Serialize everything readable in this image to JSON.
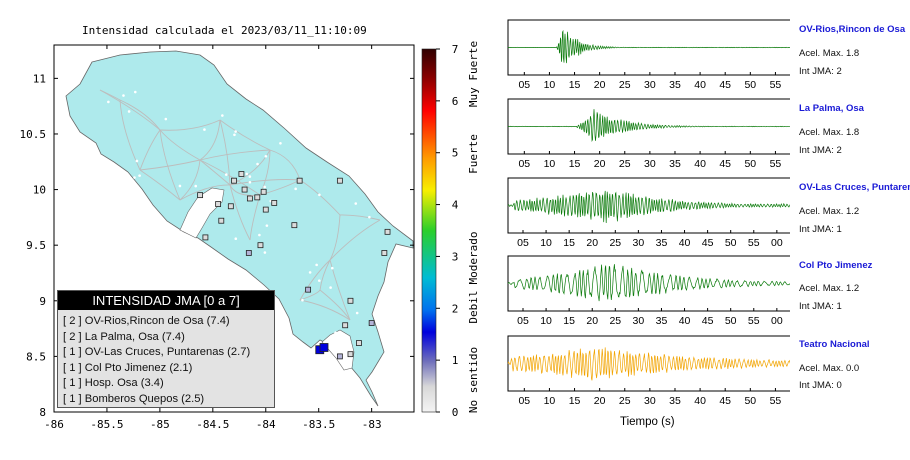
{
  "map": {
    "title": "Intensidad calculada el 2023/03/11_11:10:09",
    "x_ticks": [
      "-86",
      "-85.5",
      "-85",
      "-84.5",
      "-84",
      "-83.5",
      "-83"
    ],
    "y_ticks": [
      "11",
      "10.5",
      "10",
      "9.5",
      "9",
      "8.5",
      "8"
    ],
    "colors": {
      "land": "#aeeaec",
      "road": "#bdbdbd",
      "outline": "#666666",
      "station_outline": "#222222"
    }
  },
  "scale": {
    "ticks": [
      "7",
      "6",
      "5",
      "4",
      "3",
      "2",
      "1",
      "0"
    ],
    "labels": [
      "Muy Fuerte",
      "Fuerte",
      "Moderado",
      "Debil",
      "No sentido"
    ]
  },
  "legend": {
    "title": "INTENSIDAD JMA [0 a 7]",
    "items": [
      "[ 2 ]  OV-Rios,Rincon de Osa (7.4)",
      "[ 2 ]  La Palma, Osa (7.4)",
      "[ 1 ]  OV-Las Cruces, Puntarenas (2.7)",
      "[ 1 ]  Col Pto Jimenez (2.1)",
      "[ 1 ]  Hosp. Osa (3.4)",
      "[ 1 ]  Bomberos Quepos (2.5)"
    ]
  },
  "traces": {
    "xlabel": "Tiempo (s)",
    "items": [
      {
        "name": "OV-Rios,Rincon de Osa",
        "acel": "Acel. Max. 1.8",
        "int": "Int JMA: 2",
        "color": "#0a7a0a",
        "ticks": [
          "05",
          "10",
          "15",
          "20",
          "25",
          "30",
          "35",
          "40",
          "45",
          "50",
          "55"
        ]
      },
      {
        "name": "La Palma, Osa",
        "acel": "Acel. Max. 1.8",
        "int": "Int JMA: 2",
        "color": "#0a7a0a",
        "ticks": [
          "05",
          "10",
          "15",
          "20",
          "25",
          "30",
          "35",
          "40",
          "45",
          "50",
          "55"
        ]
      },
      {
        "name": "OV-Las Cruces, Puntaren",
        "acel": "Acel. Max. 1.2",
        "int": "Int JMA: 1",
        "color": "#0a7a0a",
        "ticks": [
          "05",
          "10",
          "15",
          "20",
          "25",
          "30",
          "35",
          "40",
          "45",
          "50",
          "55",
          "00"
        ]
      },
      {
        "name": "Col Pto Jimenez",
        "acel": "Acel. Max. 1.2",
        "int": "Int JMA: 1",
        "color": "#0a7a0a",
        "ticks": [
          "05",
          "10",
          "15",
          "20",
          "25",
          "30",
          "35",
          "40",
          "45",
          "50",
          "55",
          "00"
        ]
      },
      {
        "name": "Teatro Nacional",
        "acel": "Acel. Max. 0.0",
        "int": "Int JMA: 0",
        "color": "#f2a400",
        "ticks": [
          "05",
          "10",
          "15",
          "20",
          "25",
          "30",
          "35",
          "40",
          "45",
          "50",
          "55"
        ]
      }
    ]
  },
  "chart_data": [
    {
      "type": "scatter",
      "title": "Intensidad calculada el 2023/03/11_11:10:09",
      "xlim": [
        -86,
        -82.6
      ],
      "ylim": [
        8,
        11.3
      ],
      "series": [
        {
          "name": "[ 2 ]  OV-Rios,Rincon de Osa (7.4)",
          "x": [
            -83.49
          ],
          "y": [
            8.56
          ],
          "intensity": 2
        },
        {
          "name": "[ 2 ]  La Palma, Osa (7.4)",
          "x": [
            -83.45
          ],
          "y": [
            8.58
          ],
          "intensity": 2
        },
        {
          "name": "[ 1 ]  OV-Las Cruces, Puntarenas (2.7)",
          "x": [
            -83.0
          ],
          "y": [
            8.8
          ],
          "intensity": 1
        },
        {
          "name": "[ 1 ]  Col Pto Jimenez (2.1)",
          "x": [
            -83.3
          ],
          "y": [
            8.5
          ],
          "intensity": 1
        },
        {
          "name": "[ 1 ]  Hosp. Osa (3.4)",
          "x": [
            -83.6
          ],
          "y": [
            9.1
          ],
          "intensity": 1
        },
        {
          "name": "[ 1 ]  Bomberos Quepos (2.5)",
          "x": [
            -84.16
          ],
          "y": [
            9.43
          ],
          "intensity": 1
        }
      ],
      "other_stations": [
        {
          "x": -84.2,
          "y": 10.0
        },
        {
          "x": -84.15,
          "y": 9.92
        },
        {
          "x": -84.08,
          "y": 9.93
        },
        {
          "x": -84.02,
          "y": 9.98
        },
        {
          "x": -83.92,
          "y": 9.88
        },
        {
          "x": -84.3,
          "y": 10.08
        },
        {
          "x": -84.23,
          "y": 10.14
        },
        {
          "x": -84.0,
          "y": 9.82
        },
        {
          "x": -83.68,
          "y": 10.08
        },
        {
          "x": -84.45,
          "y": 9.87
        },
        {
          "x": -84.33,
          "y": 9.85
        },
        {
          "x": -84.62,
          "y": 9.95
        },
        {
          "x": -84.42,
          "y": 9.72
        },
        {
          "x": -84.57,
          "y": 9.57
        },
        {
          "x": -83.3,
          "y": 10.08
        },
        {
          "x": -83.73,
          "y": 9.68
        },
        {
          "x": -84.05,
          "y": 9.5
        },
        {
          "x": -82.85,
          "y": 9.62
        },
        {
          "x": -82.88,
          "y": 9.43
        },
        {
          "x": -83.2,
          "y": 9.0
        },
        {
          "x": -83.25,
          "y": 8.78
        },
        {
          "x": -83.12,
          "y": 8.62
        },
        {
          "x": -83.2,
          "y": 8.52
        }
      ]
    },
    {
      "type": "line",
      "xlabel": "Tiempo (s)",
      "series": [
        {
          "name": "OV-Rios,Rincon de Osa",
          "acel_max": 1.8,
          "int_jma": 2
        },
        {
          "name": "La Palma, Osa",
          "acel_max": 1.8,
          "int_jma": 2
        },
        {
          "name": "OV-Las Cruces, Puntaren",
          "acel_max": 1.2,
          "int_jma": 1
        },
        {
          "name": "Col Pto Jimenez",
          "acel_max": 1.2,
          "int_jma": 1
        },
        {
          "name": "Teatro Nacional",
          "acel_max": 0.0,
          "int_jma": 0
        }
      ]
    }
  ]
}
